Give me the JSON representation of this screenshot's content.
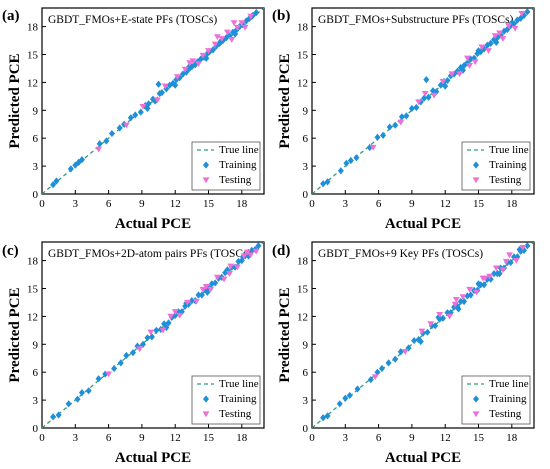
{
  "figure": {
    "axes_common": {
      "xlabel": "Actual PCE",
      "ylabel": "Predicted PCE",
      "xticks": [
        0,
        3,
        6,
        9,
        12,
        15,
        18
      ],
      "yticks": [
        0,
        3,
        6,
        9,
        12,
        15,
        18
      ],
      "xlim": [
        0,
        20
      ],
      "ylim": [
        0,
        20
      ]
    },
    "legend_labels": [
      "True line",
      "Training",
      "Testing"
    ],
    "colors": {
      "true_line": "#2f9e7e",
      "training": "#1f8fd8",
      "testing": "#ee6fd8"
    },
    "marker_names": {
      "training": "diamond-marker",
      "testing": "triangle-down-marker"
    }
  },
  "chart_data": [
    {
      "type": "scatter",
      "panel_label": "(a)",
      "title": "GBDT_FMOs+E-state PFs (TOSCs)",
      "xlabel": "Actual PCE",
      "ylabel": "Predicted PCE",
      "xlim": [
        0,
        20
      ],
      "ylim": [
        0,
        20
      ],
      "grid": false,
      "legend_position": "bottom-right",
      "series": [
        {
          "name": "True line",
          "style": "dashed-line",
          "x": [
            0,
            20
          ],
          "y": [
            0,
            20
          ]
        },
        {
          "name": "Training",
          "marker": "diamond",
          "x": [
            1.0,
            1.3,
            2.6,
            3.0,
            3.3,
            3.6,
            5.2,
            5.8,
            6.3,
            7.0,
            7.4,
            8.0,
            8.4,
            8.9,
            9.3,
            9.6,
            10.0,
            10.2,
            10.6,
            10.8,
            11.2,
            11.5,
            11.8,
            12.1,
            12.4,
            12.7,
            13.0,
            13.3,
            13.5,
            13.8,
            14.0,
            14.3,
            14.6,
            14.9,
            15.1,
            15.4,
            15.7,
            16.0,
            16.3,
            16.6,
            16.9,
            17.2,
            17.5,
            17.8,
            18.1,
            18.4,
            18.7,
            19.0,
            19.3,
            9.5,
            10.5,
            12.0,
            13.2,
            14.8,
            16.1,
            17.4,
            18.9
          ],
          "y": [
            1.0,
            1.4,
            2.7,
            3.1,
            3.4,
            3.7,
            5.4,
            5.7,
            6.5,
            7.1,
            7.5,
            8.2,
            8.5,
            8.8,
            9.5,
            9.7,
            10.2,
            10.0,
            10.8,
            10.9,
            11.3,
            11.7,
            11.9,
            12.3,
            12.5,
            12.9,
            13.1,
            13.5,
            13.7,
            13.9,
            14.2,
            14.5,
            14.7,
            15.1,
            15.3,
            15.5,
            15.9,
            16.2,
            16.5,
            16.8,
            17.0,
            17.4,
            17.6,
            18.0,
            18.2,
            18.6,
            18.9,
            19.2,
            19.5,
            9.2,
            11.8,
            11.7,
            13.6,
            14.6,
            16.4,
            17.2,
            19.1
          ]
        },
        {
          "name": "Testing",
          "marker": "triangle-down",
          "x": [
            5.1,
            7.6,
            9.1,
            10.4,
            11.1,
            12.2,
            12.9,
            13.6,
            14.1,
            14.5,
            15.0,
            15.6,
            16.2,
            16.7,
            17.1,
            17.6,
            18.0,
            18.3,
            18.8,
            13.3,
            15.8,
            17.3
          ],
          "y": [
            4.8,
            7.4,
            9.4,
            10.1,
            11.6,
            12.6,
            13.4,
            14.3,
            14.0,
            14.9,
            15.4,
            16.1,
            16.7,
            17.4,
            16.6,
            17.9,
            18.4,
            17.9,
            19.1,
            14.1,
            16.9,
            18.4
          ]
        }
      ]
    },
    {
      "type": "scatter",
      "panel_label": "(b)",
      "title": "GBDT_FMOs+Substructure PFs (TOSCs)",
      "xlabel": "Actual PCE",
      "ylabel": "Predicted PCE",
      "xlim": [
        0,
        20
      ],
      "ylim": [
        0,
        20
      ],
      "grid": false,
      "legend_position": "bottom-right",
      "series": [
        {
          "name": "True line",
          "style": "dashed-line",
          "x": [
            0,
            20
          ],
          "y": [
            0,
            20
          ]
        },
        {
          "name": "Training",
          "marker": "diamond",
          "x": [
            1.0,
            1.4,
            2.6,
            3.1,
            3.5,
            4.0,
            5.2,
            5.9,
            6.4,
            7.0,
            7.5,
            8.1,
            8.5,
            9.0,
            9.4,
            9.8,
            10.1,
            10.5,
            10.9,
            11.2,
            11.6,
            11.9,
            12.2,
            12.5,
            12.8,
            13.1,
            13.4,
            13.7,
            14.0,
            14.3,
            14.6,
            14.9,
            15.2,
            15.5,
            15.8,
            16.1,
            16.4,
            16.7,
            17.0,
            17.3,
            17.6,
            17.9,
            18.2,
            18.5,
            18.8,
            19.1,
            19.4,
            10.3,
            12.0,
            13.6,
            15.0,
            16.6,
            18.0
          ],
          "y": [
            1.1,
            1.3,
            2.5,
            3.3,
            3.6,
            3.9,
            5.0,
            6.1,
            6.3,
            7.2,
            7.4,
            8.3,
            8.4,
            9.2,
            9.3,
            9.9,
            10.3,
            10.4,
            11.1,
            11.0,
            11.7,
            12.1,
            12.2,
            12.7,
            12.9,
            13.2,
            13.6,
            13.8,
            14.1,
            14.5,
            14.6,
            15.1,
            15.3,
            15.6,
            16.0,
            16.2,
            16.6,
            16.8,
            17.1,
            17.5,
            17.7,
            18.1,
            18.3,
            18.7,
            18.9,
            19.2,
            19.6,
            12.3,
            11.6,
            13.3,
            15.4,
            16.3,
            18.4
          ]
        },
        {
          "name": "Testing",
          "marker": "triangle-down",
          "x": [
            5.5,
            8.0,
            9.6,
            11.0,
            11.8,
            12.6,
            13.3,
            14.0,
            14.7,
            15.3,
            15.9,
            16.5,
            17.2,
            17.7,
            18.3,
            18.9,
            10.2,
            14.2,
            16.9
          ],
          "y": [
            5.0,
            7.7,
            9.9,
            10.6,
            12.1,
            12.9,
            12.9,
            14.6,
            14.2,
            15.8,
            15.4,
            17.0,
            16.7,
            18.1,
            17.8,
            19.4,
            10.8,
            13.8,
            17.3
          ]
        }
      ]
    },
    {
      "type": "scatter",
      "panel_label": "(c)",
      "title": "GBDT_FMOs+2D-atom pairs PFs (TOSCs)",
      "xlabel": "Actual PCE",
      "ylabel": "Predicted PCE",
      "xlim": [
        0,
        20
      ],
      "ylim": [
        0,
        20
      ],
      "grid": false,
      "legend_position": "bottom-right",
      "series": [
        {
          "name": "True line",
          "style": "dashed-line",
          "x": [
            0,
            20
          ],
          "y": [
            0,
            20
          ]
        },
        {
          "name": "Training",
          "marker": "diamond",
          "x": [
            1.0,
            1.5,
            2.4,
            3.2,
            3.6,
            4.2,
            5.1,
            5.7,
            6.5,
            7.1,
            7.6,
            8.2,
            8.6,
            9.1,
            9.5,
            9.9,
            10.3,
            10.7,
            11.0,
            11.4,
            11.7,
            12.0,
            12.3,
            12.6,
            12.9,
            13.2,
            13.5,
            13.8,
            14.1,
            14.4,
            14.7,
            15.0,
            15.3,
            15.6,
            15.9,
            16.2,
            16.5,
            16.8,
            17.1,
            17.4,
            17.7,
            18.0,
            18.3,
            18.6,
            18.9,
            19.2,
            19.5,
            11.2,
            13.0,
            14.9,
            16.7,
            18.1
          ],
          "y": [
            1.2,
            1.4,
            2.6,
            3.1,
            3.8,
            4.0,
            5.3,
            5.8,
            6.4,
            7.0,
            7.8,
            8.1,
            8.8,
            9.0,
            9.7,
            9.8,
            10.5,
            10.6,
            11.2,
            11.3,
            11.9,
            12.1,
            12.5,
            12.5,
            13.1,
            13.3,
            13.7,
            13.7,
            14.3,
            14.3,
            14.9,
            15.1,
            15.5,
            15.6,
            16.1,
            16.2,
            16.7,
            16.8,
            17.3,
            17.3,
            17.9,
            18.0,
            18.5,
            18.5,
            19.1,
            19.2,
            19.6,
            10.8,
            13.4,
            14.6,
            17.0,
            18.4
          ]
        },
        {
          "name": "Testing",
          "marker": "triangle-down",
          "x": [
            6.0,
            8.8,
            9.8,
            10.9,
            11.6,
            12.4,
            13.1,
            13.9,
            14.5,
            15.2,
            15.8,
            16.4,
            17.0,
            17.6,
            18.2,
            18.8,
            19.3,
            12.0,
            14.8,
            16.9,
            18.5
          ],
          "y": [
            5.8,
            8.5,
            10.3,
            10.5,
            12.0,
            12.1,
            13.5,
            13.6,
            14.9,
            14.9,
            16.2,
            16.0,
            17.4,
            17.3,
            18.5,
            18.6,
            19.0,
            12.5,
            15.2,
            16.6,
            18.9
          ]
        }
      ]
    },
    {
      "type": "scatter",
      "panel_label": "(d)",
      "title": "GBDT_FMOs+9 Key PFs (TOSCs)",
      "xlabel": "Actual PCE",
      "ylabel": "Predicted PCE",
      "xlim": [
        0,
        20
      ],
      "ylim": [
        0,
        20
      ],
      "grid": false,
      "legend_position": "bottom-right",
      "series": [
        {
          "name": "True line",
          "style": "dashed-line",
          "x": [
            0,
            20
          ],
          "y": [
            0,
            20
          ]
        },
        {
          "name": "Training",
          "marker": "diamond",
          "x": [
            1.0,
            1.4,
            2.5,
            3.0,
            3.4,
            4.1,
            5.3,
            5.9,
            6.3,
            6.9,
            7.5,
            8.0,
            8.7,
            9.2,
            9.6,
            10.0,
            10.4,
            10.8,
            11.1,
            11.5,
            11.8,
            12.2,
            12.5,
            12.8,
            13.1,
            13.4,
            13.7,
            14.0,
            14.3,
            14.6,
            14.9,
            15.2,
            15.5,
            15.8,
            16.1,
            16.4,
            16.7,
            17.0,
            17.3,
            17.6,
            17.9,
            18.2,
            18.5,
            18.8,
            19.1,
            19.4,
            9.8,
            11.4,
            13.2,
            15.0,
            16.9,
            18.7
          ],
          "y": [
            1.1,
            1.3,
            2.6,
            3.2,
            3.5,
            4.2,
            5.2,
            6.0,
            6.4,
            7.0,
            7.4,
            8.2,
            8.6,
            9.4,
            9.5,
            10.2,
            10.3,
            11.0,
            11.0,
            11.7,
            11.8,
            12.4,
            12.4,
            13.0,
            13.1,
            13.6,
            13.6,
            14.2,
            14.3,
            14.8,
            14.8,
            15.4,
            15.4,
            16.0,
            16.0,
            16.6,
            16.6,
            17.2,
            17.2,
            17.8,
            17.8,
            18.4,
            18.4,
            19.0,
            19.1,
            19.6,
            9.3,
            11.9,
            12.8,
            15.5,
            16.6,
            19.2
          ]
        },
        {
          "name": "Testing",
          "marker": "triangle-down",
          "x": [
            5.7,
            8.4,
            9.9,
            10.7,
            11.5,
            12.4,
            13.0,
            13.6,
            14.2,
            14.8,
            15.4,
            16.0,
            16.6,
            17.2,
            17.8,
            18.4,
            19.0,
            12.9,
            15.6,
            17.5
          ],
          "y": [
            5.5,
            8.2,
            10.4,
            11.2,
            12.2,
            12.0,
            13.8,
            14.1,
            14.9,
            14.6,
            16.1,
            16.3,
            17.2,
            17.0,
            18.6,
            18.0,
            19.4,
            13.3,
            16.1,
            17.9
          ]
        }
      ]
    }
  ]
}
